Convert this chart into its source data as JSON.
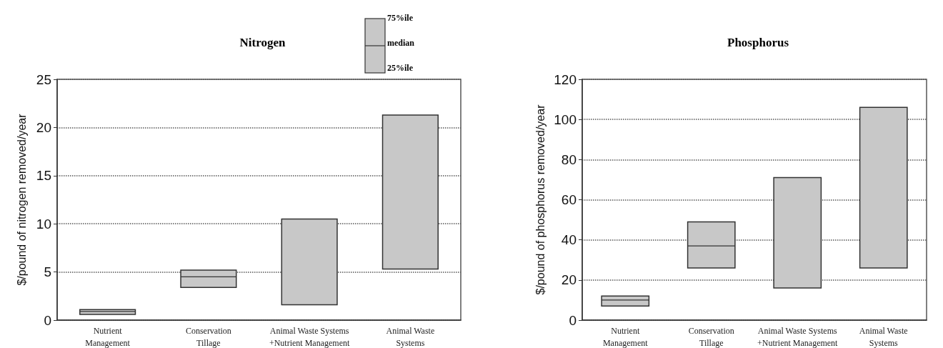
{
  "chart_data": [
    {
      "type": "box",
      "title": "Nitrogen",
      "ylabel": "$/pound of nitrogen removed/year",
      "categories": [
        "Nutrient\nManagement",
        "Conservation\nTillage",
        "Animal Waste Systems\n+Nutrient Management",
        "Animal Waste\nSystems"
      ],
      "color": "#c8c8c8",
      "boxes": [
        {
          "low": 0.6,
          "q1": 0.6,
          "median": 0.9,
          "q3": 1.1,
          "high": 1.1
        },
        {
          "low": 3.4,
          "q1": 3.4,
          "median": 4.5,
          "q3": 5.2,
          "high": 5.2
        },
        {
          "low": 1.6,
          "q1": 1.6,
          "median": null,
          "q3": 10.5,
          "high": 10.5
        },
        {
          "low": 5.3,
          "q1": 5.3,
          "median": null,
          "q3": 21.3,
          "high": 21.3
        }
      ],
      "ylim": [
        0,
        25
      ],
      "yticks": [
        0,
        5,
        10,
        15,
        20,
        25
      ],
      "grid": "y",
      "annotations": [
        "75%ile",
        "median",
        "25%ile"
      ]
    },
    {
      "type": "box",
      "title": "Phosphorus",
      "ylabel": "$/pound of phosphorus removed/year",
      "categories": [
        "Nutrient\nManagement",
        "Conservation\nTillage",
        "Animal Waste Systems\n+Nutrient Management",
        "Animal Waste\nSystems"
      ],
      "color": "#c8c8c8",
      "boxes": [
        {
          "low": 7,
          "q1": 7,
          "median": 10,
          "q3": 12,
          "high": 12
        },
        {
          "low": 26,
          "q1": 26,
          "median": 37,
          "q3": 49,
          "high": 49
        },
        {
          "low": 16,
          "q1": 16,
          "median": null,
          "q3": 71,
          "high": 71
        },
        {
          "low": 26,
          "q1": 26,
          "median": null,
          "q3": 106,
          "high": 106
        }
      ],
      "ylim": [
        0,
        120
      ],
      "yticks": [
        0,
        20,
        40,
        60,
        80,
        100,
        120
      ],
      "grid": "y"
    }
  ]
}
